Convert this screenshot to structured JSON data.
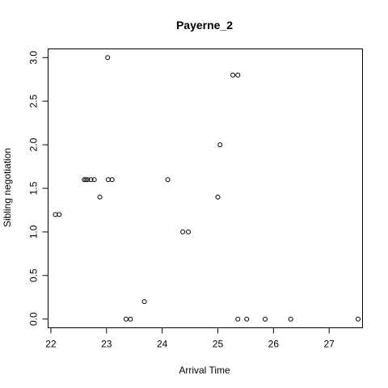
{
  "chart_data": {
    "type": "scatter",
    "title": "Payerne_2",
    "xlabel": "Arrival Time",
    "ylabel": "Sibling negotiation",
    "xlim": [
      21.95,
      27.6
    ],
    "ylim": [
      -0.1,
      3.1
    ],
    "xticks": [
      22,
      23,
      24,
      25,
      26,
      27
    ],
    "yticks": [
      0.0,
      0.5,
      1.0,
      1.5,
      2.0,
      2.5,
      3.0
    ],
    "xtick_labels": [
      "22",
      "23",
      "24",
      "25",
      "26",
      "27"
    ],
    "ytick_labels": [
      "0.0",
      "0.5",
      "1.0",
      "1.5",
      "2.0",
      "2.5",
      "3.0"
    ],
    "grid": false,
    "points": [
      {
        "x": 22.08,
        "y": 1.2
      },
      {
        "x": 22.15,
        "y": 1.2
      },
      {
        "x": 22.6,
        "y": 1.6
      },
      {
        "x": 22.63,
        "y": 1.6
      },
      {
        "x": 22.66,
        "y": 1.6
      },
      {
        "x": 22.72,
        "y": 1.6
      },
      {
        "x": 22.78,
        "y": 1.6
      },
      {
        "x": 22.88,
        "y": 1.4
      },
      {
        "x": 23.02,
        "y": 3.0
      },
      {
        "x": 23.03,
        "y": 1.6
      },
      {
        "x": 23.1,
        "y": 1.6
      },
      {
        "x": 23.35,
        "y": 0.0
      },
      {
        "x": 23.43,
        "y": 0.0
      },
      {
        "x": 23.68,
        "y": 0.2
      },
      {
        "x": 24.1,
        "y": 1.6
      },
      {
        "x": 24.37,
        "y": 1.0
      },
      {
        "x": 24.47,
        "y": 1.0
      },
      {
        "x": 25.0,
        "y": 1.4
      },
      {
        "x": 25.04,
        "y": 2.0
      },
      {
        "x": 25.27,
        "y": 2.8
      },
      {
        "x": 25.36,
        "y": 2.8
      },
      {
        "x": 25.36,
        "y": 0.0
      },
      {
        "x": 25.52,
        "y": 0.0
      },
      {
        "x": 25.85,
        "y": 0.0
      },
      {
        "x": 26.31,
        "y": 0.0
      },
      {
        "x": 27.52,
        "y": 0.0
      }
    ]
  }
}
